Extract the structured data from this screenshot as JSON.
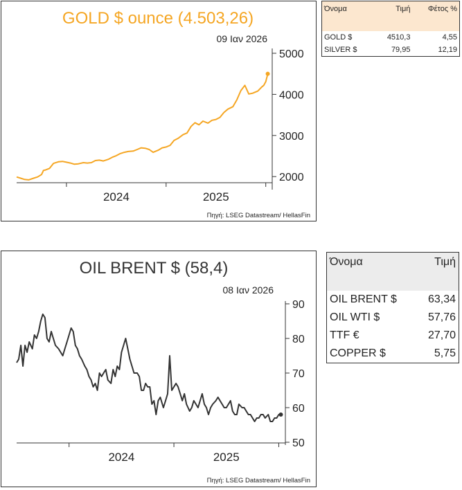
{
  "gold_chart": {
    "title": "GOLD $ ounce (4.503,26)",
    "date": "09 Ιαν 2026",
    "source": "Πηγή: LSEG Datastream/ HellasFin",
    "line_color": "#f5a623"
  },
  "oil_chart": {
    "title": "OIL BRENT $ (58,4)",
    "date": "08 Ιαν 2026",
    "source": "Πηγή: LSEG Datastream/ HellasFin",
    "line_color": "#333333"
  },
  "gold_table": {
    "headers": [
      "Όνομα",
      "Τιμή",
      "Φέτος %"
    ],
    "rows": [
      [
        "GOLD $",
        "4510,3",
        "4,55"
      ],
      [
        "SILVER $",
        "79,95",
        "12,19"
      ]
    ]
  },
  "oil_table": {
    "headers": [
      "Όνομα",
      "Τιμή"
    ],
    "rows": [
      [
        "OIL BRENT $",
        "63,34"
      ],
      [
        "OIL WTI $",
        "57,76"
      ],
      [
        "TTF €",
        "27,70"
      ],
      [
        "COPPER $",
        "5,75"
      ]
    ]
  },
  "chart_data": [
    {
      "type": "line",
      "title": "GOLD $ ounce (4.503,26)",
      "x_tick_labels": [
        "2024",
        "2025"
      ],
      "yticks": [
        2000,
        3000,
        4000,
        5000
      ],
      "ylim": [
        1750,
        5050
      ],
      "xlim": [
        2023.5,
        2026.03
      ],
      "series": [
        {
          "x": [
            2023.5,
            2023.54,
            2023.58,
            2023.62,
            2023.67,
            2023.71,
            2023.75,
            2023.77,
            2023.79,
            2023.83,
            2023.87,
            2023.92,
            2023.96,
            2024.0,
            2024.04,
            2024.08,
            2024.12,
            2024.17,
            2024.21,
            2024.25,
            2024.29,
            2024.33,
            2024.37,
            2024.42,
            2024.46,
            2024.5,
            2024.54,
            2024.58,
            2024.62,
            2024.67,
            2024.71,
            2024.75,
            2024.79,
            2024.83,
            2024.87,
            2024.92,
            2024.96,
            2025.0,
            2025.04,
            2025.08,
            2025.12,
            2025.17,
            2025.21,
            2025.25,
            2025.29,
            2025.33,
            2025.37,
            2025.42,
            2025.46,
            2025.5,
            2025.54,
            2025.58,
            2025.62,
            2025.67,
            2025.71,
            2025.75,
            2025.79,
            2025.83,
            2025.87,
            2025.92,
            2025.96,
            2025.98,
            2026.0,
            2026.02
          ],
          "y": [
            1990,
            1960,
            1930,
            1920,
            1960,
            1990,
            2050,
            2150,
            2160,
            2200,
            2320,
            2360,
            2370,
            2350,
            2330,
            2300,
            2310,
            2340,
            2330,
            2340,
            2390,
            2400,
            2380,
            2420,
            2470,
            2510,
            2560,
            2590,
            2610,
            2620,
            2660,
            2700,
            2690,
            2660,
            2590,
            2640,
            2700,
            2720,
            2760,
            2880,
            2930,
            3020,
            3060,
            3220,
            3310,
            3260,
            3350,
            3300,
            3370,
            3390,
            3440,
            3560,
            3640,
            3700,
            3870,
            4090,
            4220,
            4010,
            4030,
            4080,
            4180,
            4220,
            4310,
            4500
          ]
        }
      ]
    },
    {
      "type": "line",
      "title": "OIL BRENT $ (58,4)",
      "x_tick_labels": [
        "2024",
        "2025"
      ],
      "yticks": [
        50,
        60,
        70,
        80,
        90
      ],
      "ylim": [
        50,
        90
      ],
      "xlim": [
        2023.5,
        2026.03
      ],
      "series": [
        {
          "x": [
            2023.5,
            2023.52,
            2023.54,
            2023.56,
            2023.58,
            2023.6,
            2023.62,
            2023.65,
            2023.67,
            2023.69,
            2023.71,
            2023.73,
            2023.75,
            2023.77,
            2023.79,
            2023.81,
            2023.83,
            2023.85,
            2023.87,
            2023.9,
            2023.92,
            2023.94,
            2023.96,
            2023.98,
            2024.0,
            2024.02,
            2024.04,
            2024.06,
            2024.08,
            2024.1,
            2024.12,
            2024.15,
            2024.17,
            2024.19,
            2024.21,
            2024.23,
            2024.25,
            2024.27,
            2024.29,
            2024.31,
            2024.33,
            2024.35,
            2024.37,
            2024.4,
            2024.42,
            2024.44,
            2024.46,
            2024.48,
            2024.5,
            2024.52,
            2024.54,
            2024.56,
            2024.58,
            2024.6,
            2024.62,
            2024.65,
            2024.67,
            2024.69,
            2024.71,
            2024.73,
            2024.75,
            2024.77,
            2024.79,
            2024.81,
            2024.83,
            2024.85,
            2024.87,
            2024.9,
            2024.92,
            2024.94,
            2024.96,
            2024.98,
            2025.0,
            2025.02,
            2025.04,
            2025.06,
            2025.08,
            2025.1,
            2025.12,
            2025.15,
            2025.17,
            2025.19,
            2025.21,
            2025.23,
            2025.25,
            2025.27,
            2025.29,
            2025.31,
            2025.33,
            2025.35,
            2025.37,
            2025.4,
            2025.42,
            2025.44,
            2025.46,
            2025.48,
            2025.5,
            2025.52,
            2025.54,
            2025.56,
            2025.58,
            2025.6,
            2025.62,
            2025.65,
            2025.67,
            2025.69,
            2025.71,
            2025.73,
            2025.75,
            2025.77,
            2025.79,
            2025.81,
            2025.83,
            2025.85,
            2025.87,
            2025.9,
            2025.92,
            2025.94,
            2025.96,
            2025.98,
            2026.0,
            2026.02
          ],
          "y": [
            73,
            74,
            78,
            72,
            78,
            76,
            79,
            77,
            81,
            80,
            82,
            85,
            87,
            86,
            80,
            79,
            82,
            80,
            78,
            77,
            76,
            75,
            77,
            79,
            81,
            83,
            82,
            78,
            77,
            75,
            74,
            72,
            71,
            69,
            68,
            66,
            67,
            65,
            70,
            69,
            70,
            71,
            68,
            67,
            71,
            69,
            72,
            71,
            76,
            78,
            80,
            77,
            74,
            72,
            70,
            70,
            69,
            65,
            65,
            67,
            66,
            66,
            61,
            62,
            58,
            62,
            63,
            60,
            62,
            64,
            75,
            65,
            66,
            67,
            66,
            64,
            62,
            64,
            61,
            59,
            60,
            62,
            61,
            60,
            62,
            64,
            61,
            60,
            58,
            60,
            61,
            62,
            63,
            62,
            61,
            60,
            60,
            61,
            62,
            59,
            58,
            58,
            61,
            60,
            60,
            59,
            58,
            58,
            57,
            56,
            57,
            57,
            58,
            58,
            57,
            58,
            56,
            56,
            57,
            57,
            58,
            58
          ]
        }
      ]
    }
  ]
}
